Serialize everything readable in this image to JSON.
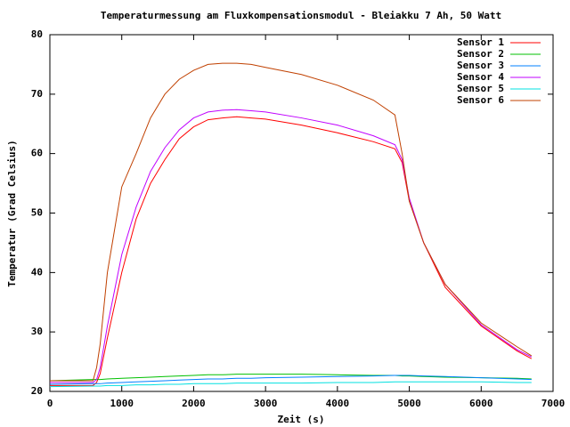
{
  "chart_data": {
    "type": "line",
    "title": "Temperaturmessung am Fluxkompensationsmodul - Bleiakku 7 Ah, 50 Watt",
    "xlabel": "Zeit (s)",
    "ylabel": "Temperatur (Grad Celsius)",
    "x": [
      0,
      600,
      650,
      700,
      800,
      1000,
      1200,
      1400,
      1600,
      1800,
      2000,
      2200,
      2400,
      2600,
      2800,
      3000,
      3500,
      4000,
      4500,
      4800,
      4900,
      5000,
      5200,
      5500,
      6000,
      6500,
      6700
    ],
    "series": [
      {
        "name": "Sensor 1",
        "color": "#ff0000",
        "values": [
          21,
          21,
          21.5,
          23,
          29,
          40,
          49,
          55,
          59,
          62.5,
          64.5,
          65.7,
          66,
          66.2,
          66,
          65.8,
          64.8,
          63.5,
          62,
          60.8,
          58.5,
          52,
          45,
          37.5,
          31,
          26.8,
          25.5
        ]
      },
      {
        "name": "Sensor 2",
        "color": "#00c000",
        "values": [
          21.8,
          22,
          22,
          22,
          22.1,
          22.2,
          22.3,
          22.4,
          22.5,
          22.6,
          22.7,
          22.8,
          22.8,
          22.9,
          22.9,
          22.9,
          22.9,
          22.8,
          22.7,
          22.7,
          22.6,
          22.6,
          22.5,
          22.4,
          22.3,
          22.2,
          22.1
        ]
      },
      {
        "name": "Sensor 3",
        "color": "#0080ff",
        "values": [
          21.2,
          21.3,
          21.3,
          21.3,
          21.4,
          21.5,
          21.6,
          21.7,
          21.8,
          21.9,
          22,
          22.1,
          22.1,
          22.2,
          22.2,
          22.3,
          22.4,
          22.5,
          22.6,
          22.7,
          22.7,
          22.7,
          22.6,
          22.5,
          22.3,
          22.1,
          22
        ]
      },
      {
        "name": "Sensor 4",
        "color": "#c000ff",
        "values": [
          21.5,
          21.5,
          22,
          24,
          31,
          43,
          51,
          57,
          61,
          64,
          66,
          67,
          67.3,
          67.4,
          67.2,
          67,
          66,
          64.8,
          63,
          61.5,
          59,
          52.5,
          45,
          38,
          31.2,
          27,
          25.8
        ]
      },
      {
        "name": "Sensor 5",
        "color": "#00e0e0",
        "values": [
          20.8,
          20.9,
          20.9,
          20.9,
          21,
          21,
          21.1,
          21.1,
          21.2,
          21.2,
          21.3,
          21.3,
          21.3,
          21.4,
          21.4,
          21.4,
          21.4,
          21.5,
          21.5,
          21.6,
          21.6,
          21.6,
          21.6,
          21.6,
          21.6,
          21.5,
          21.5
        ]
      },
      {
        "name": "Sensor 6",
        "color": "#c04000",
        "values": [
          21.8,
          21.8,
          24,
          28,
          40,
          54.4,
          60,
          66,
          70,
          72.5,
          74,
          75,
          75.2,
          75.2,
          75,
          74.5,
          73.3,
          71.5,
          69,
          66.5,
          60,
          52,
          45,
          38,
          31.5,
          27.5,
          26
        ]
      }
    ],
    "xlim": [
      0,
      7000
    ],
    "xticks": [
      0,
      1000,
      2000,
      3000,
      4000,
      5000,
      6000,
      7000
    ],
    "ylim": [
      20,
      80
    ],
    "yticks": [
      20,
      30,
      40,
      50,
      60,
      70,
      80
    ],
    "legend": "top-right"
  }
}
